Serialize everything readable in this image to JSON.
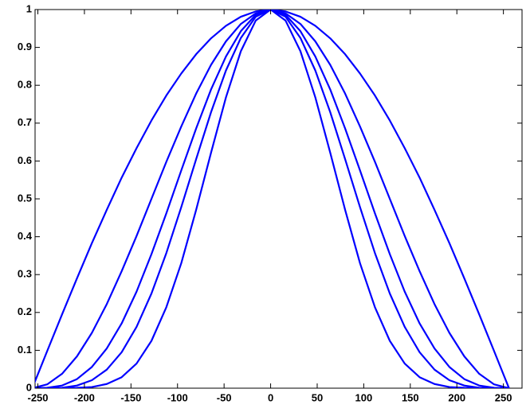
{
  "chart_data": {
    "type": "line",
    "x": [
      -256,
      -240,
      -224,
      -208,
      -192,
      -176,
      -160,
      -144,
      -128,
      -112,
      -96,
      -80,
      -64,
      -48,
      -32,
      -16,
      0,
      16,
      32,
      48,
      64,
      80,
      96,
      112,
      128,
      144,
      160,
      176,
      192,
      208,
      224,
      240,
      256
    ],
    "series": [
      {
        "color": "#0000ff",
        "values": [
          0,
          0.098,
          0.195,
          0.29,
          0.383,
          0.471,
          0.556,
          0.634,
          0.707,
          0.773,
          0.831,
          0.882,
          0.924,
          0.957,
          0.981,
          0.995,
          1,
          0.995,
          0.981,
          0.957,
          0.924,
          0.882,
          0.831,
          0.773,
          0.707,
          0.634,
          0.556,
          0.471,
          0.383,
          0.29,
          0.195,
          0.098,
          0
        ]
      },
      {
        "color": "#0000ff",
        "values": [
          0,
          0.01,
          0.038,
          0.084,
          0.146,
          0.222,
          0.309,
          0.402,
          0.5,
          0.598,
          0.691,
          0.778,
          0.854,
          0.916,
          0.962,
          0.99,
          1,
          0.99,
          0.962,
          0.916,
          0.854,
          0.778,
          0.691,
          0.598,
          0.5,
          0.402,
          0.309,
          0.222,
          0.146,
          0.084,
          0.038,
          0.01,
          0
        ]
      },
      {
        "color": "#0000ff",
        "values": [
          0,
          0.001,
          0.007,
          0.024,
          0.056,
          0.105,
          0.171,
          0.255,
          0.354,
          0.462,
          0.575,
          0.686,
          0.789,
          0.876,
          0.943,
          0.986,
          1,
          0.986,
          0.943,
          0.876,
          0.789,
          0.686,
          0.575,
          0.462,
          0.354,
          0.255,
          0.171,
          0.105,
          0.056,
          0.024,
          0.007,
          0.001,
          0
        ]
      },
      {
        "color": "#0000ff",
        "values": [
          0,
          0,
          0.001,
          0.007,
          0.021,
          0.049,
          0.095,
          0.162,
          0.25,
          0.357,
          0.478,
          0.605,
          0.729,
          0.839,
          0.925,
          0.981,
          1,
          0.981,
          0.925,
          0.839,
          0.729,
          0.605,
          0.478,
          0.357,
          0.25,
          0.162,
          0.095,
          0.049,
          0.021,
          0.007,
          0.001,
          0,
          0
        ]
      },
      {
        "color": "#0000ff",
        "values": [
          0,
          0,
          0,
          0.001,
          0.003,
          0.011,
          0.029,
          0.065,
          0.125,
          0.214,
          0.33,
          0.471,
          0.622,
          0.768,
          0.89,
          0.971,
          1,
          0.971,
          0.89,
          0.768,
          0.622,
          0.471,
          0.33,
          0.214,
          0.125,
          0.065,
          0.029,
          0.011,
          0.003,
          0.001,
          0,
          0,
          0
        ]
      }
    ],
    "xlim": [
      -253,
      270
    ],
    "xticks": [
      -250,
      -200,
      -150,
      -100,
      -50,
      0,
      50,
      100,
      150,
      200,
      250
    ],
    "ylim": [
      0,
      1
    ],
    "yticks": [
      0,
      0.1,
      0.2,
      0.3,
      0.4,
      0.5,
      0.6,
      0.7,
      0.8,
      0.9,
      1
    ]
  }
}
